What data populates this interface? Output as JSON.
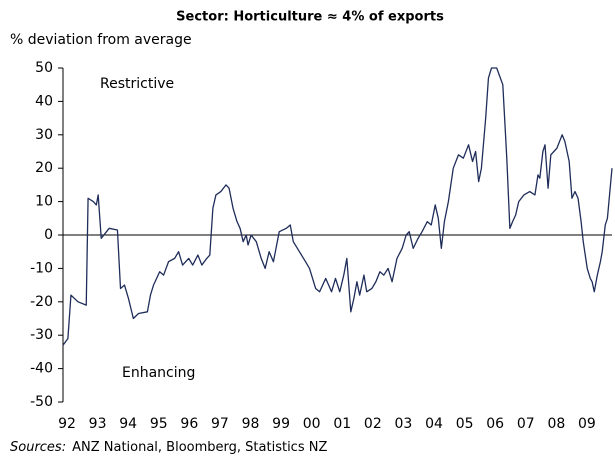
{
  "chart_data": {
    "type": "line",
    "title": "Sector: Horticulture ≈ 4% of exports",
    "y_label": "% deviation from average",
    "annotations": [
      "Restrictive",
      "Enhancing"
    ],
    "source_label": "Sources:",
    "source_text": "ANZ National, Bloomberg, Statistics NZ",
    "color": "#1f2d5a",
    "x": [
      1992.0,
      1992.16,
      1992.26,
      1992.49,
      1992.76,
      1992.82,
      1992.99,
      1993.09,
      1993.15,
      1993.25,
      1993.51,
      1993.78,
      1993.88,
      1994.01,
      1994.14,
      1994.3,
      1994.47,
      1994.76,
      1994.86,
      1994.96,
      1995.16,
      1995.29,
      1995.45,
      1995.65,
      1995.78,
      1995.91,
      1996.11,
      1996.24,
      1996.41,
      1996.54,
      1996.7,
      1996.8,
      1996.9,
      1997.0,
      1997.16,
      1997.33,
      1997.43,
      1997.56,
      1997.69,
      1997.79,
      1997.89,
      1997.99,
      1998.05,
      1998.15,
      1998.32,
      1998.48,
      1998.61,
      1998.74,
      1998.88,
      1999.07,
      1999.3,
      1999.43,
      1999.53,
      1999.73,
      1999.93,
      2000.06,
      2000.26,
      2000.39,
      2000.59,
      2000.78,
      2000.91,
      2001.05,
      2001.18,
      2001.28,
      2001.41,
      2001.51,
      2001.61,
      2001.7,
      2001.84,
      2001.93,
      2002.1,
      2002.23,
      2002.36,
      2002.49,
      2002.63,
      2002.76,
      2002.92,
      2003.09,
      2003.22,
      2003.32,
      2003.45,
      2003.61,
      2003.74,
      2003.91,
      2004.04,
      2004.17,
      2004.27,
      2004.37,
      2004.47,
      2004.6,
      2004.76,
      2004.93,
      2005.09,
      2005.26,
      2005.39,
      2005.49,
      2005.59,
      2005.68,
      2005.82,
      2005.91,
      2006.01,
      2006.18,
      2006.38,
      2006.51,
      2006.61,
      2006.7,
      2006.8,
      2006.9,
      2007.07,
      2007.26,
      2007.43,
      2007.53,
      2007.59,
      2007.69,
      2007.76,
      2007.86,
      2007.95,
      2008.05,
      2008.15,
      2008.32,
      2008.41,
      2008.55,
      2008.64,
      2008.74,
      2008.84,
      2008.94,
      2009.01,
      2009.14,
      2009.24,
      2009.3,
      2009.37,
      2009.47,
      2009.57,
      2009.63,
      2009.73,
      2009.8,
      2009.87,
      2009.95
    ],
    "values": [
      -33,
      -31,
      -18,
      -20,
      -21,
      11,
      10,
      9,
      12,
      -1,
      2,
      1.5,
      -16,
      -15,
      -19,
      -25,
      -23.5,
      -23,
      -18,
      -15,
      -11,
      -12,
      -8,
      -7,
      -5,
      -9,
      -7,
      -9,
      -6,
      -9,
      -7,
      -6,
      8,
      12,
      13,
      15,
      14,
      8,
      4,
      2,
      -2,
      0,
      -3,
      0,
      -2,
      -7,
      -10,
      -5,
      -8,
      1,
      2,
      3,
      -2,
      -5,
      -8,
      -10,
      -16,
      -17,
      -13,
      -17,
      -13,
      -17,
      -12,
      -7,
      -23,
      -19,
      -14,
      -18,
      -12,
      -17,
      -16,
      -14,
      -11,
      -12,
      -10,
      -14,
      -7,
      -4,
      0,
      1,
      -4,
      -1,
      1,
      4,
      3,
      9,
      5,
      -4,
      4,
      10,
      20,
      24,
      23,
      27,
      22,
      25,
      16,
      20,
      35,
      47,
      50,
      50,
      45,
      23,
      2,
      4,
      6,
      10,
      12,
      13,
      12,
      18,
      17,
      25,
      27,
      14,
      24,
      25,
      26,
      30,
      28,
      22,
      11,
      13,
      11,
      4,
      -2,
      -10,
      -13,
      -14,
      -17,
      -12,
      -8,
      -5,
      3,
      5,
      12,
      20
    ],
    "xlim": [
      1992,
      2009.95
    ],
    "xticks": [
      {
        "value": 1992,
        "label": "92"
      },
      {
        "value": 1993,
        "label": "93"
      },
      {
        "value": 1994,
        "label": "94"
      },
      {
        "value": 1995,
        "label": "95"
      },
      {
        "value": 1996,
        "label": "96"
      },
      {
        "value": 1997,
        "label": "97"
      },
      {
        "value": 1998,
        "label": "98"
      },
      {
        "value": 1999,
        "label": "99"
      },
      {
        "value": 2000,
        "label": "00"
      },
      {
        "value": 2001,
        "label": "01"
      },
      {
        "value": 2002,
        "label": "02"
      },
      {
        "value": 2003,
        "label": "03"
      },
      {
        "value": 2004,
        "label": "04"
      },
      {
        "value": 2005,
        "label": "05"
      },
      {
        "value": 2006,
        "label": "06"
      },
      {
        "value": 2007,
        "label": "07"
      },
      {
        "value": 2008,
        "label": "08"
      },
      {
        "value": 2009,
        "label": "09"
      }
    ],
    "ylim": [
      -50,
      50
    ],
    "yticks": [
      -50,
      -40,
      -30,
      -20,
      -10,
      0,
      10,
      20,
      30,
      40,
      50
    ],
    "grid": false
  }
}
